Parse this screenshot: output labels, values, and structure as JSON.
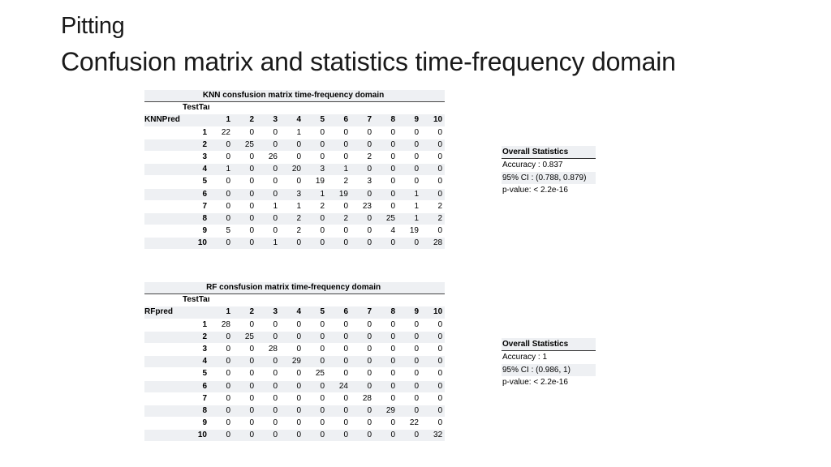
{
  "header": {
    "title": "Pitting",
    "subtitle": "Confusion matrix and statistics time-frequency domain"
  },
  "knn": {
    "caption": "KNN consfusion matrix time-frequency domain",
    "target_label": "TestTarget",
    "pred_label": "KNNPred",
    "columns": [
      "1",
      "2",
      "3",
      "4",
      "5",
      "6",
      "7",
      "8",
      "9",
      "10"
    ],
    "rows": [
      {
        "label": "1",
        "cells": [
          "22",
          "0",
          "0",
          "1",
          "0",
          "0",
          "0",
          "0",
          "0",
          "0"
        ]
      },
      {
        "label": "2",
        "cells": [
          "0",
          "25",
          "0",
          "0",
          "0",
          "0",
          "0",
          "0",
          "0",
          "0"
        ]
      },
      {
        "label": "3",
        "cells": [
          "0",
          "0",
          "26",
          "0",
          "0",
          "0",
          "2",
          "0",
          "0",
          "0"
        ]
      },
      {
        "label": "4",
        "cells": [
          "1",
          "0",
          "0",
          "20",
          "3",
          "1",
          "0",
          "0",
          "0",
          "0"
        ]
      },
      {
        "label": "5",
        "cells": [
          "0",
          "0",
          "0",
          "0",
          "19",
          "2",
          "3",
          "0",
          "0",
          "0"
        ]
      },
      {
        "label": "6",
        "cells": [
          "0",
          "0",
          "0",
          "3",
          "1",
          "19",
          "0",
          "0",
          "1",
          "0"
        ]
      },
      {
        "label": "7",
        "cells": [
          "0",
          "0",
          "1",
          "1",
          "2",
          "0",
          "23",
          "0",
          "1",
          "2"
        ]
      },
      {
        "label": "8",
        "cells": [
          "0",
          "0",
          "0",
          "2",
          "0",
          "2",
          "0",
          "25",
          "1",
          "2"
        ]
      },
      {
        "label": "9",
        "cells": [
          "5",
          "0",
          "0",
          "2",
          "0",
          "0",
          "0",
          "4",
          "19",
          "0"
        ]
      },
      {
        "label": "10",
        "cells": [
          "0",
          "0",
          "1",
          "0",
          "0",
          "0",
          "0",
          "0",
          "0",
          "28"
        ]
      }
    ],
    "stats": {
      "heading": "Overall Statistics",
      "accuracy": "Accuracy : 0.837",
      "ci": "95% CI : (0.788, 0.879)",
      "pvalue": "p-value: < 2.2e-16"
    }
  },
  "rf": {
    "caption": "RF consfusion matrix time-frequency domain",
    "target_label": "TestTarget",
    "pred_label": "RFpred",
    "columns": [
      "1",
      "2",
      "3",
      "4",
      "5",
      "6",
      "7",
      "8",
      "9",
      "10"
    ],
    "rows": [
      {
        "label": "1",
        "cells": [
          "28",
          "0",
          "0",
          "0",
          "0",
          "0",
          "0",
          "0",
          "0",
          "0"
        ]
      },
      {
        "label": "2",
        "cells": [
          "0",
          "25",
          "0",
          "0",
          "0",
          "0",
          "0",
          "0",
          "0",
          "0"
        ]
      },
      {
        "label": "3",
        "cells": [
          "0",
          "0",
          "28",
          "0",
          "0",
          "0",
          "0",
          "0",
          "0",
          "0"
        ]
      },
      {
        "label": "4",
        "cells": [
          "0",
          "0",
          "0",
          "29",
          "0",
          "0",
          "0",
          "0",
          "0",
          "0"
        ]
      },
      {
        "label": "5",
        "cells": [
          "0",
          "0",
          "0",
          "0",
          "25",
          "0",
          "0",
          "0",
          "0",
          "0"
        ]
      },
      {
        "label": "6",
        "cells": [
          "0",
          "0",
          "0",
          "0",
          "0",
          "24",
          "0",
          "0",
          "0",
          "0"
        ]
      },
      {
        "label": "7",
        "cells": [
          "0",
          "0",
          "0",
          "0",
          "0",
          "0",
          "28",
          "0",
          "0",
          "0"
        ]
      },
      {
        "label": "8",
        "cells": [
          "0",
          "0",
          "0",
          "0",
          "0",
          "0",
          "0",
          "29",
          "0",
          "0"
        ]
      },
      {
        "label": "9",
        "cells": [
          "0",
          "0",
          "0",
          "0",
          "0",
          "0",
          "0",
          "0",
          "22",
          "0"
        ]
      },
      {
        "label": "10",
        "cells": [
          "0",
          "0",
          "0",
          "0",
          "0",
          "0",
          "0",
          "0",
          "0",
          "32"
        ]
      }
    ],
    "stats": {
      "heading": "Overall Statistics",
      "accuracy": "Accuracy : 1",
      "ci": "95% CI : (0.986, 1)",
      "pvalue": "p-value: < 2.2e-16"
    }
  }
}
